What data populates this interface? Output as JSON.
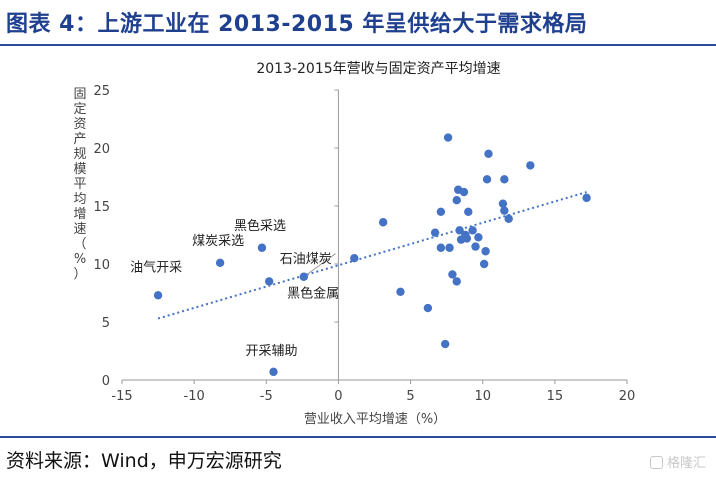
{
  "header": {
    "title": "图表 4：上游工业在 2013-2015 年呈供给大于需求格局"
  },
  "footer": {
    "source": "资料来源：Wind，申万宏源研究",
    "watermark": "格隆汇"
  },
  "colors": {
    "accent": "#1f3f8f",
    "point": "#4472c4",
    "trend": "#4472c4",
    "axis": "#9a9a9a"
  },
  "chart_data": {
    "type": "scatter",
    "title": "2013-2015年营收与固定资产平均增速",
    "xlabel": "营业收入平均增速（%）",
    "ylabel": "固定资产规模平均增速（%）",
    "xlim": [
      -15,
      20
    ],
    "ylim": [
      0,
      25
    ],
    "xticks": [
      -15,
      -10,
      -5,
      0,
      5,
      10,
      15,
      20
    ],
    "yticks": [
      0,
      5,
      10,
      15,
      20,
      25
    ],
    "grid": false,
    "trendline": {
      "style": "dotted",
      "x": [
        -12.5,
        17.2
      ],
      "y": [
        5.3,
        16.2
      ]
    },
    "points": [
      {
        "x": -12.5,
        "y": 7.3,
        "label": "油气开采"
      },
      {
        "x": -8.2,
        "y": 10.1,
        "label": "煤炭采选"
      },
      {
        "x": -5.3,
        "y": 11.4,
        "label": "黑色采选"
      },
      {
        "x": -2.4,
        "y": 8.9,
        "label": "石油煤炭"
      },
      {
        "x": -4.8,
        "y": 8.5,
        "label": "黑色金属"
      },
      {
        "x": -4.5,
        "y": 0.7,
        "label": "开采辅助"
      },
      {
        "x": 1.1,
        "y": 10.5
      },
      {
        "x": 3.1,
        "y": 13.6
      },
      {
        "x": 4.3,
        "y": 7.6
      },
      {
        "x": 6.2,
        "y": 6.2
      },
      {
        "x": 6.7,
        "y": 12.7
      },
      {
        "x": 7.1,
        "y": 14.5
      },
      {
        "x": 7.1,
        "y": 11.4
      },
      {
        "x": 7.4,
        "y": 3.1
      },
      {
        "x": 7.6,
        "y": 20.9
      },
      {
        "x": 7.7,
        "y": 11.4
      },
      {
        "x": 7.9,
        "y": 9.1
      },
      {
        "x": 8.2,
        "y": 15.5
      },
      {
        "x": 8.2,
        "y": 8.5
      },
      {
        "x": 8.3,
        "y": 16.4
      },
      {
        "x": 8.4,
        "y": 12.9
      },
      {
        "x": 8.5,
        "y": 12.1
      },
      {
        "x": 8.7,
        "y": 16.2
      },
      {
        "x": 8.8,
        "y": 12.5
      },
      {
        "x": 8.9,
        "y": 12.2
      },
      {
        "x": 9.0,
        "y": 14.5
      },
      {
        "x": 9.3,
        "y": 12.9
      },
      {
        "x": 9.5,
        "y": 11.5
      },
      {
        "x": 9.7,
        "y": 12.3
      },
      {
        "x": 10.1,
        "y": 10.0
      },
      {
        "x": 10.2,
        "y": 11.1
      },
      {
        "x": 10.3,
        "y": 17.3
      },
      {
        "x": 10.4,
        "y": 19.5
      },
      {
        "x": 11.4,
        "y": 15.2
      },
      {
        "x": 11.5,
        "y": 17.3
      },
      {
        "x": 11.5,
        "y": 14.6
      },
      {
        "x": 11.8,
        "y": 13.9
      },
      {
        "x": 13.3,
        "y": 18.5
      },
      {
        "x": 17.2,
        "y": 15.7
      }
    ]
  }
}
